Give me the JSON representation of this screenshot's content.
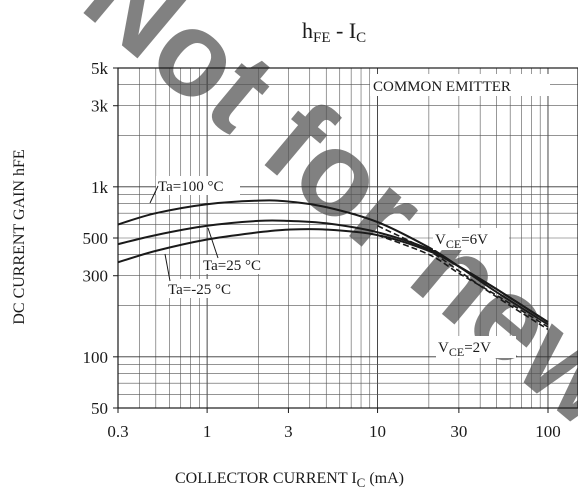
{
  "chart_data": {
    "type": "line",
    "title_main": "h",
    "title_sub1": "FE",
    "title_mid": " - I",
    "title_sub2": "C",
    "xlabel_main": "COLLECTOR CURRENT I",
    "xlabel_sub": "C",
    "xlabel_unit": "  (mA)",
    "ylabel": "DC CURRENT GAIN hFE",
    "x_scale": "log",
    "y_scale": "log",
    "xlim": [
      0.3,
      150
    ],
    "ylim": [
      50,
      5000
    ],
    "grid": true,
    "x_ticks": [
      {
        "value": 0.3,
        "label": "0.3"
      },
      {
        "value": 1,
        "label": "1"
      },
      {
        "value": 3,
        "label": "3"
      },
      {
        "value": 10,
        "label": "10"
      },
      {
        "value": 30,
        "label": "30"
      },
      {
        "value": 100,
        "label": "100"
      }
    ],
    "y_ticks": [
      {
        "value": 50,
        "label": "50"
      },
      {
        "value": 100,
        "label": "100"
      },
      {
        "value": 300,
        "label": "300"
      },
      {
        "value": 500,
        "label": "500"
      },
      {
        "value": 1000,
        "label": "1k"
      },
      {
        "value": 3000,
        "label": "3k"
      },
      {
        "value": 5000,
        "label": "5k"
      }
    ],
    "box_label": "COMMON EMITTER",
    "series": [
      {
        "name": "Ta=100 °C",
        "vce": "6V",
        "style": "solid",
        "x": [
          0.3,
          0.5,
          1,
          2,
          3,
          5,
          10,
          20,
          30,
          50,
          100
        ],
        "y": [
          600,
          700,
          790,
          830,
          820,
          760,
          620,
          440,
          340,
          240,
          155
        ]
      },
      {
        "name": "Ta=25 °C",
        "vce": "6V",
        "style": "solid",
        "x": [
          0.3,
          0.5,
          1,
          2,
          3,
          5,
          10,
          20,
          30,
          50,
          100
        ],
        "y": [
          460,
          520,
          590,
          630,
          630,
          610,
          540,
          430,
          340,
          250,
          160
        ]
      },
      {
        "name": "Ta=-25 °C",
        "vce": "6V",
        "style": "solid",
        "x": [
          0.3,
          0.5,
          1,
          2,
          3,
          5,
          10,
          20,
          30,
          50,
          100
        ],
        "y": [
          360,
          420,
          490,
          540,
          560,
          560,
          520,
          420,
          340,
          250,
          160
        ]
      },
      {
        "name": "Ta=100 °C VCE=2V",
        "vce": "2V",
        "style": "dashed",
        "x": [
          10,
          20,
          30,
          50,
          100
        ],
        "y": [
          590,
          420,
          320,
          225,
          145
        ]
      },
      {
        "name": "Ta=25 °C VCE=2V",
        "vce": "2V",
        "style": "dashed",
        "x": [
          10,
          20,
          30,
          50,
          100
        ],
        "y": [
          520,
          400,
          310,
          230,
          150
        ]
      }
    ],
    "annotations": [
      {
        "id": "ta100",
        "text": "Ta=100 °C"
      },
      {
        "id": "ta25",
        "text": "Ta=25 °C"
      },
      {
        "id": "tam25",
        "text": "Ta=-25 °C"
      }
    ],
    "vce_labels": {
      "v6_main": "V",
      "v6_sub": "CE",
      "v6_val": "=6V",
      "v2_main": "V",
      "v2_sub": "CE",
      "v2_val": "=2V"
    },
    "watermark": "Not for new"
  }
}
